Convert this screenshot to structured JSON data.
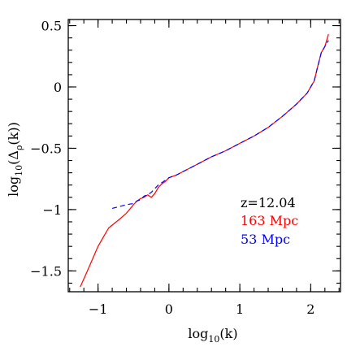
{
  "chart_data": {
    "type": "line",
    "xlabel": {
      "prefix": "log",
      "sub": "10",
      "suffix": "(k)"
    },
    "ylabel": {
      "prefix": "log",
      "sub": "10",
      "mid": "(Δ",
      "greek_sub": "ρ",
      "suffix": "(k))"
    },
    "xlim": [
      -1.42,
      2.42
    ],
    "ylim": [
      -1.67,
      0.55
    ],
    "xticks": [
      {
        "value": -1,
        "label": "−1"
      },
      {
        "value": 0,
        "label": "0"
      },
      {
        "value": 1,
        "label": "1"
      },
      {
        "value": 2,
        "label": "2"
      }
    ],
    "yticks": [
      {
        "value": 0.5,
        "label": "0.5"
      },
      {
        "value": 0,
        "label": "0"
      },
      {
        "value": -0.5,
        "label": "−0.5"
      },
      {
        "value": -1,
        "label": "−1"
      },
      {
        "value": -1.5,
        "label": "−1.5"
      }
    ],
    "x_minor_step": 0.2,
    "y_minor_step": 0.1,
    "annotations": [
      {
        "text": "z=12.04",
        "color": "#000000"
      },
      {
        "text": "163 Mpc",
        "color": "#ff0000"
      },
      {
        "text": "53 Mpc",
        "color": "#0000ff"
      }
    ],
    "series": [
      {
        "name": "163 Mpc",
        "color": "#ff0000",
        "style": "solid",
        "x": [
          -1.25,
          -1.15,
          -1.0,
          -0.85,
          -0.7,
          -0.6,
          -0.5,
          -0.45,
          -0.4,
          -0.35,
          -0.3,
          -0.25,
          -0.2,
          -0.15,
          -0.1,
          -0.05,
          0.0,
          0.1,
          0.2,
          0.3,
          0.4,
          0.5,
          0.6,
          0.8,
          1.0,
          1.2,
          1.4,
          1.6,
          1.8,
          1.95,
          2.05,
          2.1,
          2.15,
          2.2,
          2.25
        ],
        "y": [
          -1.63,
          -1.5,
          -1.3,
          -1.15,
          -1.08,
          -1.03,
          -0.96,
          -0.93,
          -0.91,
          -0.9,
          -0.88,
          -0.9,
          -0.87,
          -0.82,
          -0.79,
          -0.77,
          -0.74,
          -0.72,
          -0.69,
          -0.66,
          -0.63,
          -0.6,
          -0.57,
          -0.52,
          -0.46,
          -0.4,
          -0.33,
          -0.24,
          -0.14,
          -0.05,
          0.05,
          0.17,
          0.28,
          0.33,
          0.43
        ]
      },
      {
        "name": "53 Mpc",
        "color": "#0000ff",
        "style": "dashed",
        "x": [
          -0.8,
          -0.6,
          -0.5,
          -0.45,
          -0.4,
          -0.35,
          -0.3,
          -0.25,
          -0.2,
          -0.15,
          -0.1,
          -0.05,
          0.0,
          0.1,
          0.2,
          0.3,
          0.4,
          0.5,
          0.6,
          0.8,
          1.0,
          1.2,
          1.4,
          1.6,
          1.8,
          1.95,
          2.05,
          2.1,
          2.15,
          2.2,
          2.25
        ],
        "y": [
          -0.99,
          -0.96,
          -0.95,
          -0.93,
          -0.92,
          -0.89,
          -0.88,
          -0.86,
          -0.83,
          -0.8,
          -0.78,
          -0.76,
          -0.74,
          -0.72,
          -0.69,
          -0.66,
          -0.63,
          -0.6,
          -0.57,
          -0.52,
          -0.46,
          -0.4,
          -0.33,
          -0.24,
          -0.14,
          -0.05,
          0.05,
          0.17,
          0.28,
          0.33,
          0.38
        ]
      }
    ]
  }
}
